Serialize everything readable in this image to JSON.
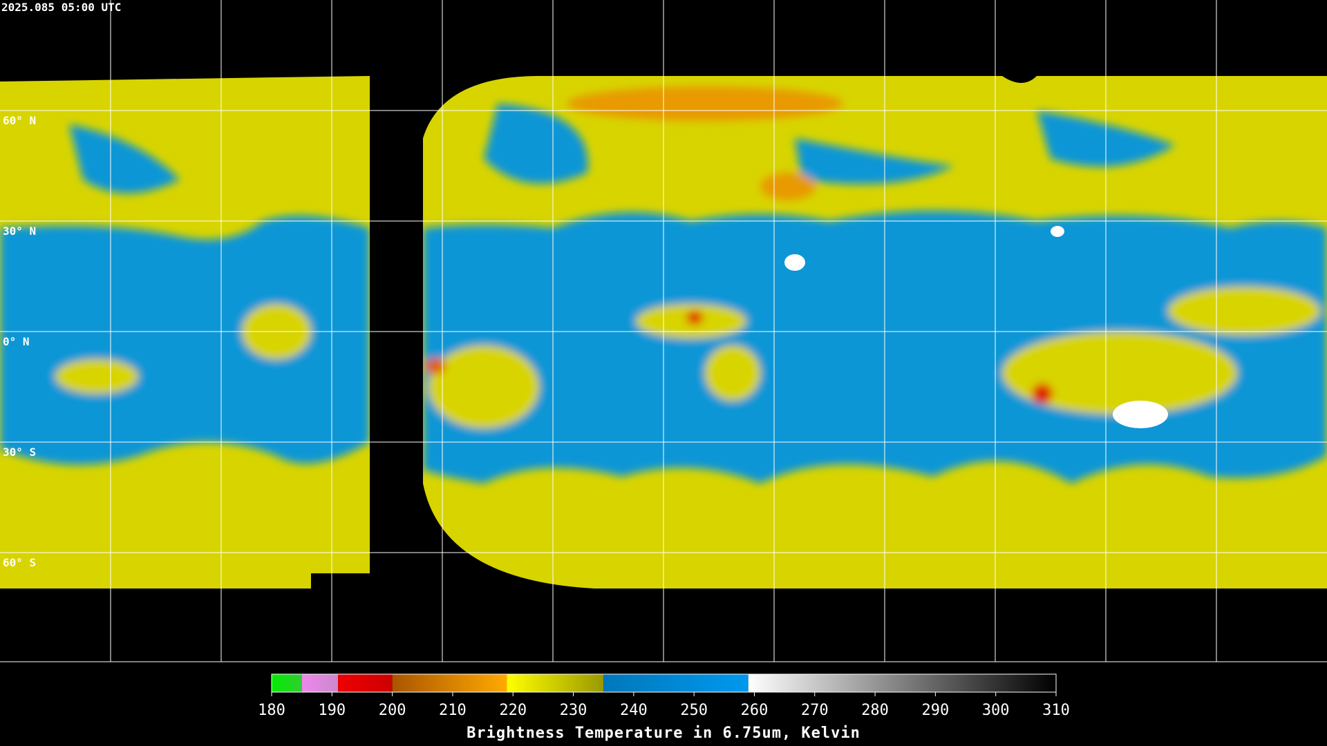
{
  "header": {
    "title": "2025.085 05:00 UTC"
  },
  "map": {
    "lat_labels": [
      "60° N",
      "30° N",
      "0° N",
      "30° S",
      "60° S"
    ]
  },
  "colorbar": {
    "label": "Brightness Temperature in 6.75um, Kelvin",
    "range": [
      180,
      310
    ],
    "ticks": [
      180,
      190,
      200,
      210,
      220,
      230,
      240,
      250,
      260,
      270,
      280,
      290,
      300,
      310
    ],
    "segments": [
      {
        "from": 180,
        "to": 185,
        "colors": [
          "#00ee00",
          "#33cc33"
        ]
      },
      {
        "from": 185,
        "to": 191,
        "colors": [
          "#ee88ee",
          "#cc88cc"
        ]
      },
      {
        "from": 191,
        "to": 200,
        "colors": [
          "#ee0000",
          "#cc0000"
        ]
      },
      {
        "from": 200,
        "to": 219,
        "colors": [
          "#aa5500",
          "#ffaa00"
        ]
      },
      {
        "from": 219,
        "to": 235,
        "colors": [
          "#ffff00",
          "#999900"
        ]
      },
      {
        "from": 235,
        "to": 259,
        "colors": [
          "#0077bb",
          "#0099ee"
        ]
      },
      {
        "from": 259,
        "to": 310,
        "colors": [
          "#ffffff",
          "#000000"
        ]
      }
    ]
  }
}
